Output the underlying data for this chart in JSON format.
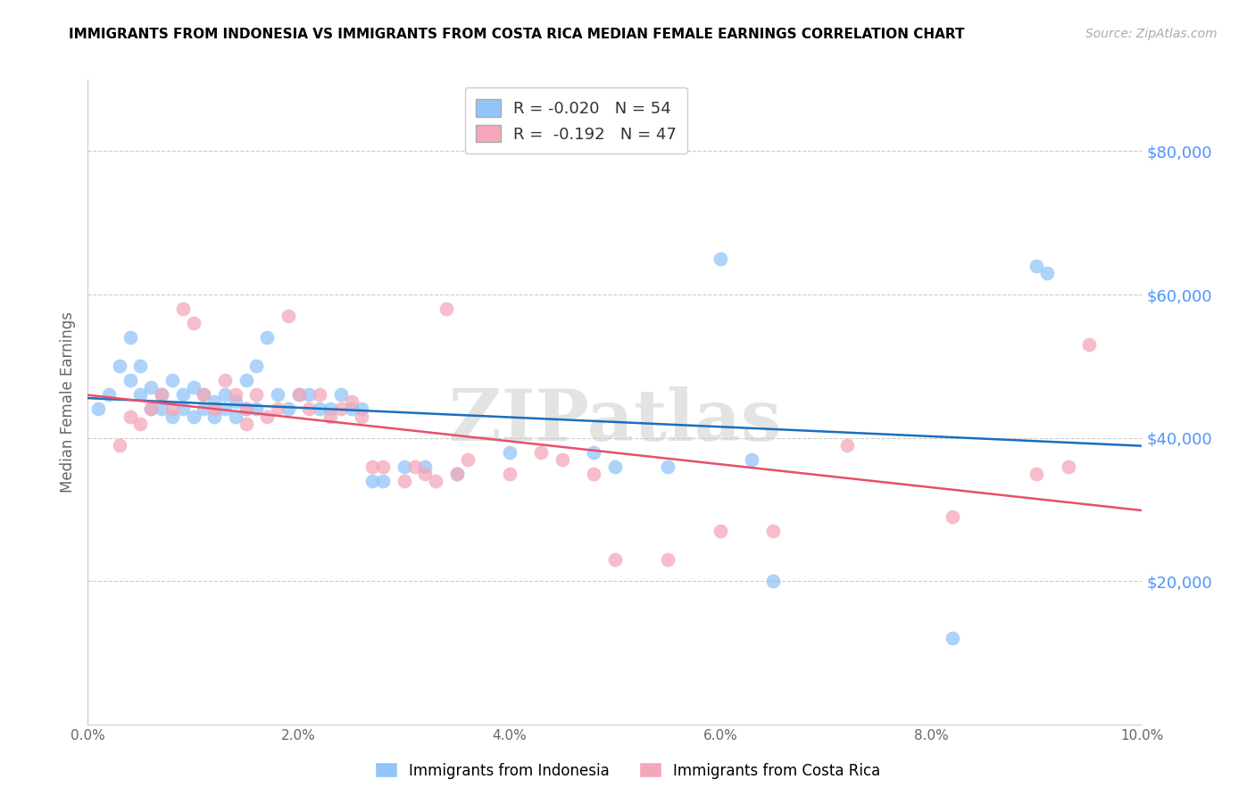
{
  "title": "IMMIGRANTS FROM INDONESIA VS IMMIGRANTS FROM COSTA RICA MEDIAN FEMALE EARNINGS CORRELATION CHART",
  "source": "Source: ZipAtlas.com",
  "ylabel": "Median Female Earnings",
  "color_blue": "#92c5f7",
  "color_pink": "#f4a7b9",
  "color_line_blue": "#1a6fbd",
  "color_line_pink": "#e8506a",
  "watermark": "ZIPatlas",
  "indonesia_x": [
    0.001,
    0.002,
    0.003,
    0.004,
    0.004,
    0.005,
    0.005,
    0.006,
    0.006,
    0.007,
    0.007,
    0.008,
    0.008,
    0.009,
    0.009,
    0.01,
    0.01,
    0.011,
    0.011,
    0.012,
    0.012,
    0.013,
    0.013,
    0.014,
    0.014,
    0.015,
    0.015,
    0.016,
    0.016,
    0.017,
    0.018,
    0.019,
    0.02,
    0.021,
    0.022,
    0.023,
    0.024,
    0.025,
    0.026,
    0.027,
    0.028,
    0.03,
    0.032,
    0.035,
    0.04,
    0.048,
    0.05,
    0.055,
    0.06,
    0.063,
    0.065,
    0.082,
    0.09,
    0.091
  ],
  "indonesia_y": [
    44000,
    46000,
    50000,
    54000,
    48000,
    46000,
    50000,
    47000,
    44000,
    46000,
    44000,
    48000,
    43000,
    46000,
    44000,
    47000,
    43000,
    46000,
    44000,
    45000,
    43000,
    46000,
    44000,
    43000,
    45000,
    48000,
    44000,
    50000,
    44000,
    54000,
    46000,
    44000,
    46000,
    46000,
    44000,
    44000,
    46000,
    44000,
    44000,
    34000,
    34000,
    36000,
    36000,
    35000,
    38000,
    38000,
    36000,
    36000,
    65000,
    37000,
    20000,
    12000,
    64000,
    63000
  ],
  "costarica_x": [
    0.003,
    0.004,
    0.005,
    0.006,
    0.007,
    0.008,
    0.009,
    0.01,
    0.011,
    0.012,
    0.013,
    0.014,
    0.015,
    0.015,
    0.016,
    0.017,
    0.018,
    0.019,
    0.02,
    0.021,
    0.022,
    0.023,
    0.024,
    0.025,
    0.026,
    0.027,
    0.028,
    0.03,
    0.031,
    0.032,
    0.033,
    0.034,
    0.035,
    0.036,
    0.04,
    0.043,
    0.045,
    0.048,
    0.05,
    0.055,
    0.06,
    0.065,
    0.072,
    0.082,
    0.09,
    0.093,
    0.095
  ],
  "costarica_y": [
    39000,
    43000,
    42000,
    44000,
    46000,
    44000,
    58000,
    56000,
    46000,
    44000,
    48000,
    46000,
    44000,
    42000,
    46000,
    43000,
    44000,
    57000,
    46000,
    44000,
    46000,
    43000,
    44000,
    45000,
    43000,
    36000,
    36000,
    34000,
    36000,
    35000,
    34000,
    58000,
    35000,
    37000,
    35000,
    38000,
    37000,
    35000,
    23000,
    23000,
    27000,
    27000,
    39000,
    29000,
    35000,
    36000,
    53000
  ],
  "xlim": [
    0.0,
    0.1
  ],
  "ylim": [
    0,
    90000
  ],
  "xticks": [
    0.0,
    0.02,
    0.04,
    0.06,
    0.08,
    0.1
  ],
  "xticklabels": [
    "0.0%",
    "2.0%",
    "4.0%",
    "6.0%",
    "8.0%",
    "10.0%"
  ],
  "yticks_right": [
    20000,
    40000,
    60000,
    80000
  ],
  "ytick_labels_right": [
    "$20,000",
    "$40,000",
    "$60,000",
    "$80,000"
  ],
  "legend_labels": [
    "R = -0.020   N = 54",
    "R =  -0.192   N = 47"
  ],
  "bottom_legend_labels": [
    "Immigrants from Indonesia",
    "Immigrants from Costa Rica"
  ],
  "title_fontsize": 11,
  "source_fontsize": 10,
  "marker_size": 130,
  "marker_alpha": 0.75
}
